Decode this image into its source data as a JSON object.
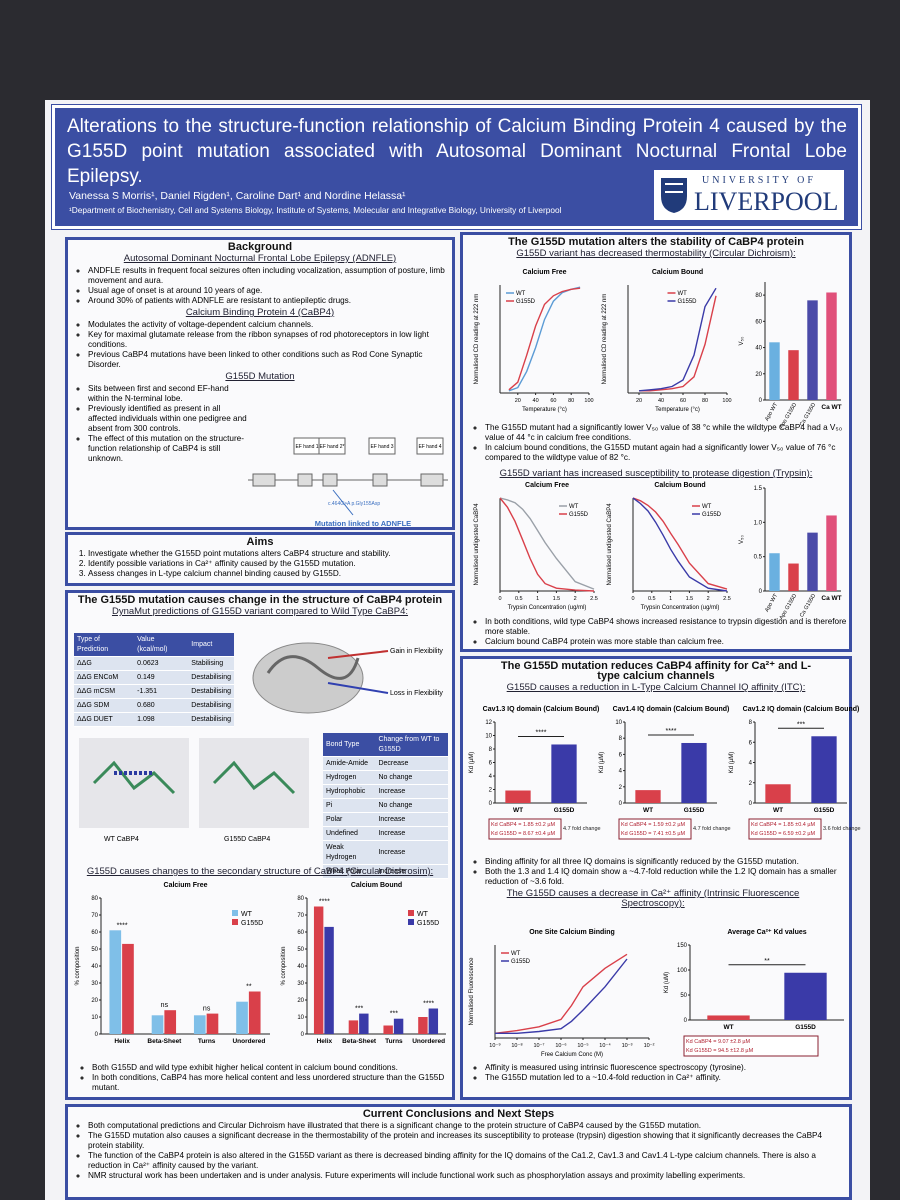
{
  "header": {
    "title": "Alterations to the structure-function relationship of Calcium Binding Protein 4 caused by the G155D point mutation associated with Autosomal Dominant Nocturnal Frontal Lobe Epilepsy.",
    "authors": "Vanessa S Morris¹, Daniel Rigden¹, Caroline Dart¹ and Nordine Helassa¹",
    "affiliation": "¹Department of Biochemistry, Cell and Systems Biology, Institute of Systems, Molecular and Integrative Biology, University of Liverpool",
    "logo_top": "UNIVERSITY OF",
    "logo_name": "LIVERPOOL"
  },
  "background": {
    "heading": "Background",
    "sub1": "Autosomal Dominant Nocturnal Frontal Lobe Epilepsy (ADNFLE)",
    "bullets1": [
      "ANDFLE results in frequent focal seizures often including vocalization, assumption of posture, limb movement and aura.",
      "Usual age of onset is at around 10 years of age.",
      "Around 30% of patients with ADNFLE are resistant to antiepileptic drugs."
    ],
    "sub2": "Calcium Binding Protein 4 (CaBP4)",
    "bullets2": [
      "Modulates the activity of voltage-dependent calcium channels.",
      "Key for maximal glutamate release from the ribbon synapses of rod photoreceptors in low light conditions.",
      "Previous CaBP4 mutations have been linked to other conditions such as Rod Cone Synaptic Disorder."
    ],
    "sub3": "G155D Mutation",
    "bullets3": [
      "Sits between first and second EF-hand within the N-terminal lobe.",
      "Previously identified as present in all affected individuals within one pedigree and absent from 300 controls.",
      "The effect of this mutation on the structure-function relationship of CaBP4 is still unknown."
    ],
    "ef_hands": [
      "EF hand 1",
      "EF hand 2*",
      "EF hand 3",
      "EF hand 4"
    ],
    "mutation_code": "c.464G>A p.Gly155Asp",
    "figure_caption": "Mutation linked to ADNFLE"
  },
  "aims": {
    "heading": "Aims",
    "items": [
      "Investigate whether the G155D point mutations alters CaBP4 structure and stability.",
      "Identify possible variations in Ca²⁺ affinity caused by the G155D mutation.",
      "Assess changes in L-type calcium channel binding caused by G155D."
    ]
  },
  "structure": {
    "heading": "The G155D mutation causes change in the structure of CaBP4 protein",
    "sub1": "DynaMut predictions of G155D variant compared to Wild Type CaBP4:",
    "table": {
      "header": [
        "Type of Prediction",
        "Value (kcal/mol)",
        "Impact"
      ],
      "rows": [
        [
          "ΔΔG",
          "0.0623",
          "Stabilising"
        ],
        [
          "ΔΔG ENCoM",
          "0.149",
          "Destabilising"
        ],
        [
          "ΔΔG mCSM",
          "-1.351",
          "Destabilising"
        ],
        [
          "ΔΔG SDM",
          "0.680",
          "Destabilising"
        ],
        [
          "ΔΔG DUET",
          "1.098",
          "Destabilising"
        ]
      ]
    },
    "gain": "Gain in Flexibility",
    "loss": "Loss in Flexibility",
    "wt_label": "WT CaBP4",
    "mut_label": "G155D CaBP4",
    "bond_table": {
      "header": [
        "Bond Type",
        "Change from WT to G155D"
      ],
      "rows": [
        [
          "Amide-Amide",
          "Decrease"
        ],
        [
          "Hydrogen",
          "No change"
        ],
        [
          "Hydrophobic",
          "Increase"
        ],
        [
          "Pi",
          "No change"
        ],
        [
          "Polar",
          "Increase"
        ],
        [
          "Undefined",
          "Increase"
        ],
        [
          "Weak Hydrogen",
          "Increase"
        ],
        [
          "Weak Polar",
          "Increase"
        ]
      ]
    },
    "sub2": "G155D causes changes to the secondary structure of CaBP4 (Circular Dichrosim):",
    "bullets": [
      "Both G155D and wild type exhibit higher helical content in calcium bound conditions.",
      "In both conditions, CaBP4 has more helical content and less unordered structure than the G155D mutant."
    ]
  },
  "stability": {
    "heading": "The G155D mutation alters the stability of CaBP4 protein",
    "sub1": "G155D variant has decreased thermostability (Circular Dichroism):",
    "bullets1": [
      "The G155D mutant had a significantly lower V₅₀ value of 38 °c while the wildtype CaBP4 had a V₅₀ value of 44 °c in calcium free conditions.",
      "In calcium bound conditions, the G155D mutant again had a significantly lower V₅₀ value of 76 °c compared to the wildtype value of 82 °c."
    ],
    "sub2": "G155D variant has increased susceptibility to protease digestion (Trypsin):",
    "bullets2": [
      "In both conditions, wild type CaBP4 shows increased resistance to trypsin digestion and is therefore more stable.",
      "Calcium bound CaBP4 protein was more stable than calcium free."
    ]
  },
  "affinity": {
    "heading": "The G155D mutation reduces CaBP4 affinity for Ca²⁺ and L-type calcium channels",
    "sub1": "G155D causes a reduction in L-Type Calcium Channel IQ affinity (ITC):",
    "bullets1": [
      "Binding affinity for all three IQ domains is significantly reduced by the G155D mutation.",
      "Both the 1.3 and 1.4 IQ domain show a ~4.7-fold reduction while the 1.2 IQ domain has a smaller reduction of ~3.6 fold."
    ],
    "sub2": "The G155D causes a decrease in Ca²⁺ affinity (Intrinsic Fluorescence Spectroscopy):",
    "bullets2": [
      "Affinity is measured using intrinsic fluorescence spectroscopy (tyrosine).",
      "The G155D mutation led to a ~10.4-fold reduction in Ca²⁺ affinity."
    ]
  },
  "conclusions": {
    "heading": "Current Conclusions and Next Steps",
    "bullets": [
      "Both computational predictions and Circular Dichroism have illustrated that there is a significant change to the protein structure of CaBP4 caused by the G155D mutation.",
      "The G155D mutation also causes a significant decrease in the thermostability of the protein and increases its susceptibility to protease (trypsin) digestion showing that it significantly decreases the CaBP4 protein stability.",
      "The function of the CaBP4 protein is also altered in the G155D variant as there is decreased binding affinity for the IQ domains of the Ca1.2, Cav1.3 and Cav1.4 L-type calcium channels. There is also a reduction in Ca²⁺ affinity caused by the variant.",
      "NMR structural work has been undertaken and is under analysis. Future experiments will include functional work such as phosphorylation assays and proximity labelling experiments."
    ]
  },
  "charts": {
    "thermal_free": {
      "type": "line",
      "title": "Calcium Free",
      "xlabel": "Temperature (°c)",
      "ylabel": "Normalised CD reading at 222 nm",
      "x": [
        10,
        20,
        30,
        40,
        50,
        60,
        70,
        80,
        90
      ],
      "xlim": [
        0,
        100
      ],
      "xticks": [
        20,
        40,
        60,
        80,
        100
      ],
      "ylim": [
        0,
        1
      ],
      "legend": "left",
      "series": [
        {
          "name": "WT",
          "color": "#5b9bd5",
          "values": [
            0.02,
            0.05,
            0.2,
            0.42,
            0.68,
            0.85,
            0.93,
            0.96,
            0.98
          ]
        },
        {
          "name": "G155D",
          "color": "#d9404a",
          "values": [
            0.03,
            0.1,
            0.35,
            0.62,
            0.82,
            0.9,
            0.94,
            0.96,
            0.97
          ]
        }
      ]
    },
    "thermal_bound": {
      "type": "line",
      "title": "Calcium Bound",
      "xlabel": "Temperature (°c)",
      "ylabel": "Normalised CD reading at 222 nm",
      "x": [
        20,
        30,
        40,
        50,
        60,
        70,
        80,
        90
      ],
      "xlim": [
        10,
        100
      ],
      "xticks": [
        20,
        40,
        60,
        80,
        100
      ],
      "ylim": [
        0,
        1
      ],
      "legend": "top",
      "series": [
        {
          "name": "WT",
          "color": "#d9404a",
          "values": [
            0.02,
            0.02,
            0.03,
            0.04,
            0.06,
            0.15,
            0.45,
            0.9
          ]
        },
        {
          "name": "G155D",
          "color": "#3a3aa8",
          "values": [
            0.02,
            0.03,
            0.04,
            0.06,
            0.12,
            0.35,
            0.8,
            0.97
          ]
        }
      ]
    },
    "thermal_v50": {
      "type": "bar",
      "ylabel": "V₅₀",
      "categories": [
        "Apo WT",
        "Apo G155D",
        "Ca G155D",
        "Ca WT"
      ],
      "values": [
        44,
        38,
        76,
        82
      ],
      "colors": [
        "#6ab0e0",
        "#d9404a",
        "#4a4aa8",
        "#e0507a"
      ],
      "ylim": [
        0,
        90
      ],
      "yticks": [
        0,
        20,
        40,
        60,
        80
      ]
    },
    "trypsin_free": {
      "type": "line",
      "title": "Calcium Free",
      "xlabel": "Trypsin Concentration (ug/ml)",
      "ylabel": "Normalised undigested CaBP4",
      "x": [
        0,
        0.2,
        0.4,
        0.6,
        0.8,
        1,
        1.2,
        1.5,
        2,
        2.5
      ],
      "xlim": [
        0,
        2.5
      ],
      "xticks": [
        0,
        0.5,
        1,
        1.5,
        2,
        2.5
      ],
      "ylim": [
        0,
        100
      ],
      "legend": "right",
      "series": [
        {
          "name": "WT",
          "color": "#9aa0a8",
          "values": [
            100,
            98,
            95,
            88,
            78,
            65,
            52,
            35,
            10,
            2
          ]
        },
        {
          "name": "G155D",
          "color": "#d9404a",
          "values": [
            100,
            90,
            75,
            55,
            35,
            18,
            8,
            3,
            1,
            0
          ]
        }
      ]
    },
    "trypsin_bound": {
      "type": "line",
      "title": "Calcium Bound",
      "xlabel": "Trypsin Concentration (ug/ml)",
      "ylabel": "Normalised undigested CaBP4",
      "x": [
        0,
        0.2,
        0.4,
        0.6,
        0.8,
        1,
        1.2,
        1.5,
        2,
        2.5
      ],
      "xlim": [
        0,
        2.5
      ],
      "xticks": [
        0,
        0.5,
        1,
        1.5,
        2,
        2.5
      ],
      "ylim": [
        0,
        100
      ],
      "legend": "right",
      "series": [
        {
          "name": "WT",
          "color": "#d9404a",
          "values": [
            100,
            97,
            92,
            85,
            75,
            62,
            50,
            30,
            8,
            2
          ]
        },
        {
          "name": "G155D",
          "color": "#3a3aa8",
          "values": [
            100,
            94,
            86,
            74,
            60,
            45,
            32,
            15,
            3,
            0
          ]
        }
      ]
    },
    "trypsin_v50": {
      "type": "bar",
      "ylabel": "V₅₀",
      "categories": [
        "Apo WT",
        "Apo G155D",
        "Ca G155D",
        "Ca WT"
      ],
      "values": [
        0.55,
        0.4,
        0.85,
        1.1
      ],
      "colors": [
        "#6ab0e0",
        "#d9404a",
        "#4a4aa8",
        "#e0507a"
      ],
      "ylim": [
        0,
        1.5
      ],
      "yticks": [
        0,
        0.5,
        {
          "value": 1,
          "label": "1.0"
        },
        1.5
      ]
    },
    "cd_free": {
      "type": "bar",
      "title": "Calcium Free",
      "ylabel": "% composition",
      "categories": [
        "Helix",
        "Beta-Sheet",
        "Turns",
        "Unordered"
      ],
      "significance": [
        "****",
        "ns",
        "ns",
        "**"
      ],
      "ylim": [
        0,
        80
      ],
      "yticks": [
        0,
        10,
        20,
        30,
        40,
        50,
        60,
        70,
        80
      ],
      "series": [
        {
          "name": "WT",
          "color": "#7fbfe8",
          "values": [
            61,
            11,
            11,
            19
          ]
        },
        {
          "name": "G155D",
          "color": "#d9404a",
          "values": [
            53,
            14,
            12,
            25
          ]
        }
      ]
    },
    "cd_bound": {
      "type": "bar",
      "title": "Calcium Bound",
      "ylabel": "% composition",
      "categories": [
        "Helix",
        "Beta-Sheet",
        "Turns",
        "Unordered"
      ],
      "significance": [
        "****",
        "***",
        "***",
        "****"
      ],
      "ylim": [
        0,
        80
      ],
      "yticks": [
        0,
        10,
        20,
        30,
        40,
        50,
        60,
        70,
        80
      ],
      "series": [
        {
          "name": "WT",
          "color": "#d9404a",
          "values": [
            75,
            8,
            5,
            10
          ]
        },
        {
          "name": "G155D",
          "color": "#3a3aa8",
          "values": [
            63,
            12,
            9,
            15
          ]
        }
      ]
    },
    "itc_13": {
      "type": "bar",
      "title": "Cav1.3 IQ domain (Calcium Bound)",
      "ylabel": "Kd (µM)",
      "categories": [
        "WT",
        "G155D"
      ],
      "values": [
        1.85,
        8.67
      ],
      "colors": [
        "#d9404a",
        "#3a3aa8"
      ],
      "significance_all": "****",
      "ylim": [
        0,
        12
      ],
      "yticks": [
        0,
        2,
        4,
        6,
        8,
        10,
        12
      ],
      "notes": [
        "Kd CaBP4 = 1.85 ±0.2 µM",
        "Kd G155D = 8.67 ±0.4 µM",
        "4.7 fold change"
      ]
    },
    "itc_14": {
      "type": "bar",
      "title": "Cav1.4 IQ domain (Calcium Bound)",
      "ylabel": "Kd (µM)",
      "categories": [
        "WT",
        "G155D"
      ],
      "values": [
        1.59,
        7.41
      ],
      "colors": [
        "#d9404a",
        "#3a3aa8"
      ],
      "significance_all": "****",
      "ylim": [
        0,
        10
      ],
      "yticks": [
        0,
        2,
        4,
        6,
        8,
        10
      ],
      "notes": [
        "Kd CaBP4 = 1.59 ±0.2 µM",
        "Kd G155D = 7.41 ±0.5 µM",
        "4.7 fold change"
      ]
    },
    "itc_12": {
      "type": "bar",
      "title": "Cav1.2 IQ domain (Calcium Bound)",
      "ylabel": "Kd (µM)",
      "categories": [
        "WT",
        "G155D"
      ],
      "values": [
        1.85,
        6.59
      ],
      "colors": [
        "#d9404a",
        "#3a3aa8"
      ],
      "significance_all": "***",
      "ylim": [
        0,
        8
      ],
      "yticks": [
        0,
        2,
        4,
        6,
        8
      ],
      "notes": [
        "Kd CaBP4 = 1.85 ±0.4 µM",
        "Kd G155D = 6.59 ±0.2 µM",
        "3.6 fold change"
      ]
    },
    "fluor_curve": {
      "type": "line",
      "title": "One Site Calcium Binding",
      "xlabel": "Free Calcium Conc (M)",
      "ylabel": "Normalised Fluorescence",
      "xlog": true,
      "x": [
        1e-09,
        1e-08,
        1e-07,
        1e-06,
        3e-06,
        1e-05,
        0.0001,
        0.001
      ],
      "xlim": [
        1e-09,
        0.01
      ],
      "xticks": [
        {
          "value": 1e-09,
          "label": "10⁻⁹"
        },
        {
          "value": 1e-08,
          "label": "10⁻⁸"
        },
        {
          "value": 1e-07,
          "label": "10⁻⁷"
        },
        {
          "value": 1e-06,
          "label": "10⁻⁶"
        },
        {
          "value": 1e-05,
          "label": "10⁻⁵"
        },
        {
          "value": 0.0001,
          "label": "10⁻⁴"
        },
        {
          "value": 0.001,
          "label": "10⁻³"
        },
        {
          "value": 0.01,
          "label": "10⁻²"
        }
      ],
      "ylim": [
        0,
        1
      ],
      "legend": "left",
      "series": [
        {
          "name": "WT",
          "color": "#d9404a",
          "values": [
            0.05,
            0.08,
            0.12,
            0.2,
            0.35,
            0.55,
            0.75,
            0.9
          ]
        },
        {
          "name": "G155D",
          "color": "#3a3aa8",
          "values": [
            0.05,
            0.05,
            0.07,
            0.1,
            0.18,
            0.3,
            0.55,
            0.85
          ]
        }
      ]
    },
    "fluor_avg": {
      "type": "bar",
      "title": "Average Ca²⁺ Kd values",
      "ylabel": "Kd (uM)",
      "categories": [
        "WT",
        "G155D"
      ],
      "values": [
        9.07,
        94.5
      ],
      "colors": [
        "#d9404a",
        "#3a3aa8"
      ],
      "significance_all": "**",
      "ylim": [
        0,
        150
      ],
      "yticks": [
        0,
        50,
        100,
        150
      ],
      "notes": [
        "Kd CaBP4 = 9.07 ±2.8 µM",
        "Kd G155D = 94.5 ±12.8 µM"
      ]
    }
  }
}
